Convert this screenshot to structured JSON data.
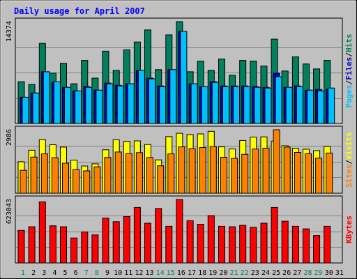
{
  "chart_data": [
    {
      "type": "bar",
      "title": "Daily usage for April 2007",
      "categories": [
        "1",
        "2",
        "3",
        "4",
        "5",
        "6",
        "7",
        "8",
        "9",
        "10",
        "11",
        "12",
        "13",
        "14",
        "15",
        "16",
        "17",
        "18",
        "19",
        "20",
        "21",
        "22",
        "23",
        "24",
        "25",
        "26",
        "27",
        "28",
        "29",
        "30",
        "31"
      ],
      "weekend_days": [
        "1",
        "7",
        "8",
        "14",
        "15",
        "21",
        "22",
        "28",
        "29"
      ],
      "panels": [
        {
          "id": "hits-panel",
          "ymax_label": "14374",
          "ymax": 14374,
          "ylabel_parts": [
            {
              "text": "Pages",
              "color": "#00bfff"
            },
            {
              "text": "/",
              "color": "#000000"
            },
            {
              "text": "Files",
              "color": "#0000c0"
            },
            {
              "text": "/",
              "color": "#000000"
            },
            {
              "text": "Hits",
              "color": "#00805c"
            }
          ],
          "series": [
            {
              "name": "Hits",
              "color": "#00805c",
              "values": [
                5900,
                5500,
                11300,
                7100,
                8500,
                5600,
                8900,
                6400,
                10200,
                7500,
                10400,
                11500,
                13200,
                7600,
                12500,
                14374,
                7300,
                8800,
                7500,
                9100,
                6800,
                8900,
                8800,
                8100,
                11900,
                7400,
                9400,
                8400,
                7700,
                8900,
                0
              ]
            },
            {
              "name": "Files",
              "color": "#0000c0",
              "values": [
                3700,
                4300,
                7300,
                5800,
                5100,
                4600,
                5200,
                4700,
                5700,
                5400,
                5600,
                7500,
                6400,
                5300,
                7600,
                13000,
                5600,
                5200,
                5900,
                5300,
                5300,
                5300,
                5200,
                5100,
                7100,
                5100,
                5300,
                4700,
                4800,
                4800,
                0
              ]
            },
            {
              "name": "Pages",
              "color": "#00bfff",
              "values": [
                3700,
                4300,
                7300,
                5900,
                5100,
                4600,
                5100,
                4700,
                5600,
                5300,
                5600,
                7500,
                6300,
                5200,
                7600,
                13000,
                5600,
                5200,
                5800,
                5200,
                5200,
                5200,
                5100,
                5000,
                6600,
                5100,
                5200,
                4700,
                4600,
                5000,
                0
              ]
            }
          ]
        },
        {
          "id": "visits-panel",
          "ymax_label": "2986",
          "ymax": 2986,
          "ylabel_parts": [
            {
              "text": "Sites",
              "color": "#ff8000"
            },
            {
              "text": "/",
              "color": "#000000"
            },
            {
              "text": "Visits",
              "color": "#ffff00"
            }
          ],
          "series": [
            {
              "name": "Visits",
              "color": "#ffff00",
              "values": [
                1480,
                2020,
                2520,
                2280,
                2170,
                1560,
                1280,
                1380,
                2040,
                2510,
                2440,
                2460,
                2290,
                1570,
                2660,
                2820,
                2760,
                2790,
                2910,
                2180,
                2080,
                2480,
                2640,
                2650,
                2450,
                2230,
                2110,
                2070,
                2000,
                2200,
                0
              ]
            },
            {
              "name": "Sites",
              "color": "#ff8000",
              "values": [
                1080,
                1700,
                1850,
                1670,
                1410,
                1120,
                1050,
                1240,
                1680,
                1940,
                1860,
                1910,
                1680,
                1290,
                1850,
                2180,
                2100,
                2150,
                2200,
                1690,
                1640,
                1830,
                2080,
                2120,
                2986,
                2170,
                1920,
                1860,
                1650,
                1890,
                0
              ]
            }
          ]
        },
        {
          "id": "kbytes-panel",
          "ymax_label": "623043",
          "ymax": 623043,
          "ylabel_parts": [
            {
              "text": "KBytes",
              "color": "#ff0000"
            }
          ],
          "series": [
            {
              "name": "KBytes",
              "color": "#ff0000",
              "values": [
                320000,
                355000,
                600000,
                365000,
                355000,
                245000,
                305000,
                275000,
                440000,
                405000,
                455000,
                545000,
                390000,
                535000,
                360000,
                623043,
                415000,
                380000,
                465000,
                360000,
                355000,
                370000,
                350000,
                390000,
                545000,
                410000,
                360000,
                335000,
                270000,
                360000,
                0
              ]
            }
          ]
        }
      ]
    }
  ]
}
